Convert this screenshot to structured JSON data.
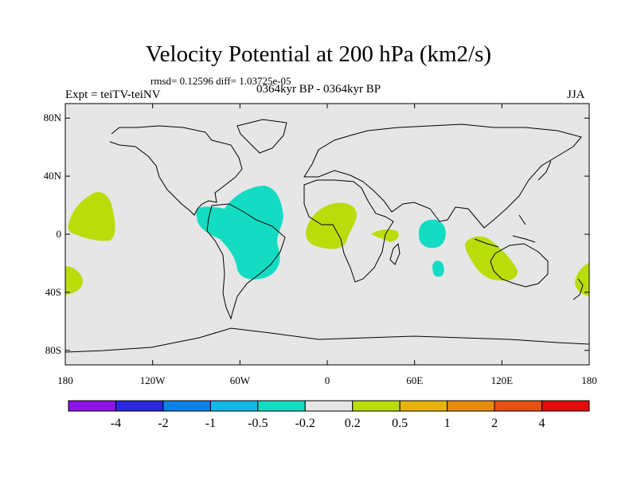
{
  "map": {
    "title": "Velocity Potential at 200 hPa (km2/s)",
    "stats": "rmsd= 0.12596 diff= 1.03725e-05",
    "experiment": "Expt = teiTV-teiNV",
    "period": "0364kyr BP - 0364kyr BP",
    "season": "JJA",
    "projection": "cylindrical equidistant",
    "lon_range": [
      -180,
      180
    ],
    "lat_range": [
      -90,
      90
    ],
    "lat_ticks": [
      {
        "value": 80,
        "label": "80N"
      },
      {
        "value": 40,
        "label": "40N"
      },
      {
        "value": 0,
        "label": "0"
      },
      {
        "value": -40,
        "label": "40S"
      },
      {
        "value": -80,
        "label": "80S"
      }
    ],
    "lon_ticks": [
      {
        "value": -180,
        "label": "180"
      },
      {
        "value": -120,
        "label": "120W"
      },
      {
        "value": -60,
        "label": "60W"
      },
      {
        "value": 0,
        "label": "0"
      },
      {
        "value": 60,
        "label": "60E"
      },
      {
        "value": 120,
        "label": "120E"
      },
      {
        "value": 180,
        "label": "180"
      }
    ]
  },
  "colorbar": {
    "colors": [
      "#8c14e6",
      "#2828dc",
      "#0a82e6",
      "#12b9e6",
      "#14dcc3",
      "#e6e6e6",
      "#b9dc0a",
      "#e6b40a",
      "#e68c0a",
      "#e65014",
      "#e60a0a"
    ],
    "labels": [
      "-4",
      "-2",
      "-1",
      "-0.5",
      "-0.2",
      "0.2",
      "0.5",
      "1",
      "2",
      "4"
    ]
  },
  "colors": {
    "background": "#e6e6e6",
    "negative_fill": "#14dcc3",
    "positive_fill": "#b9dc0a"
  }
}
